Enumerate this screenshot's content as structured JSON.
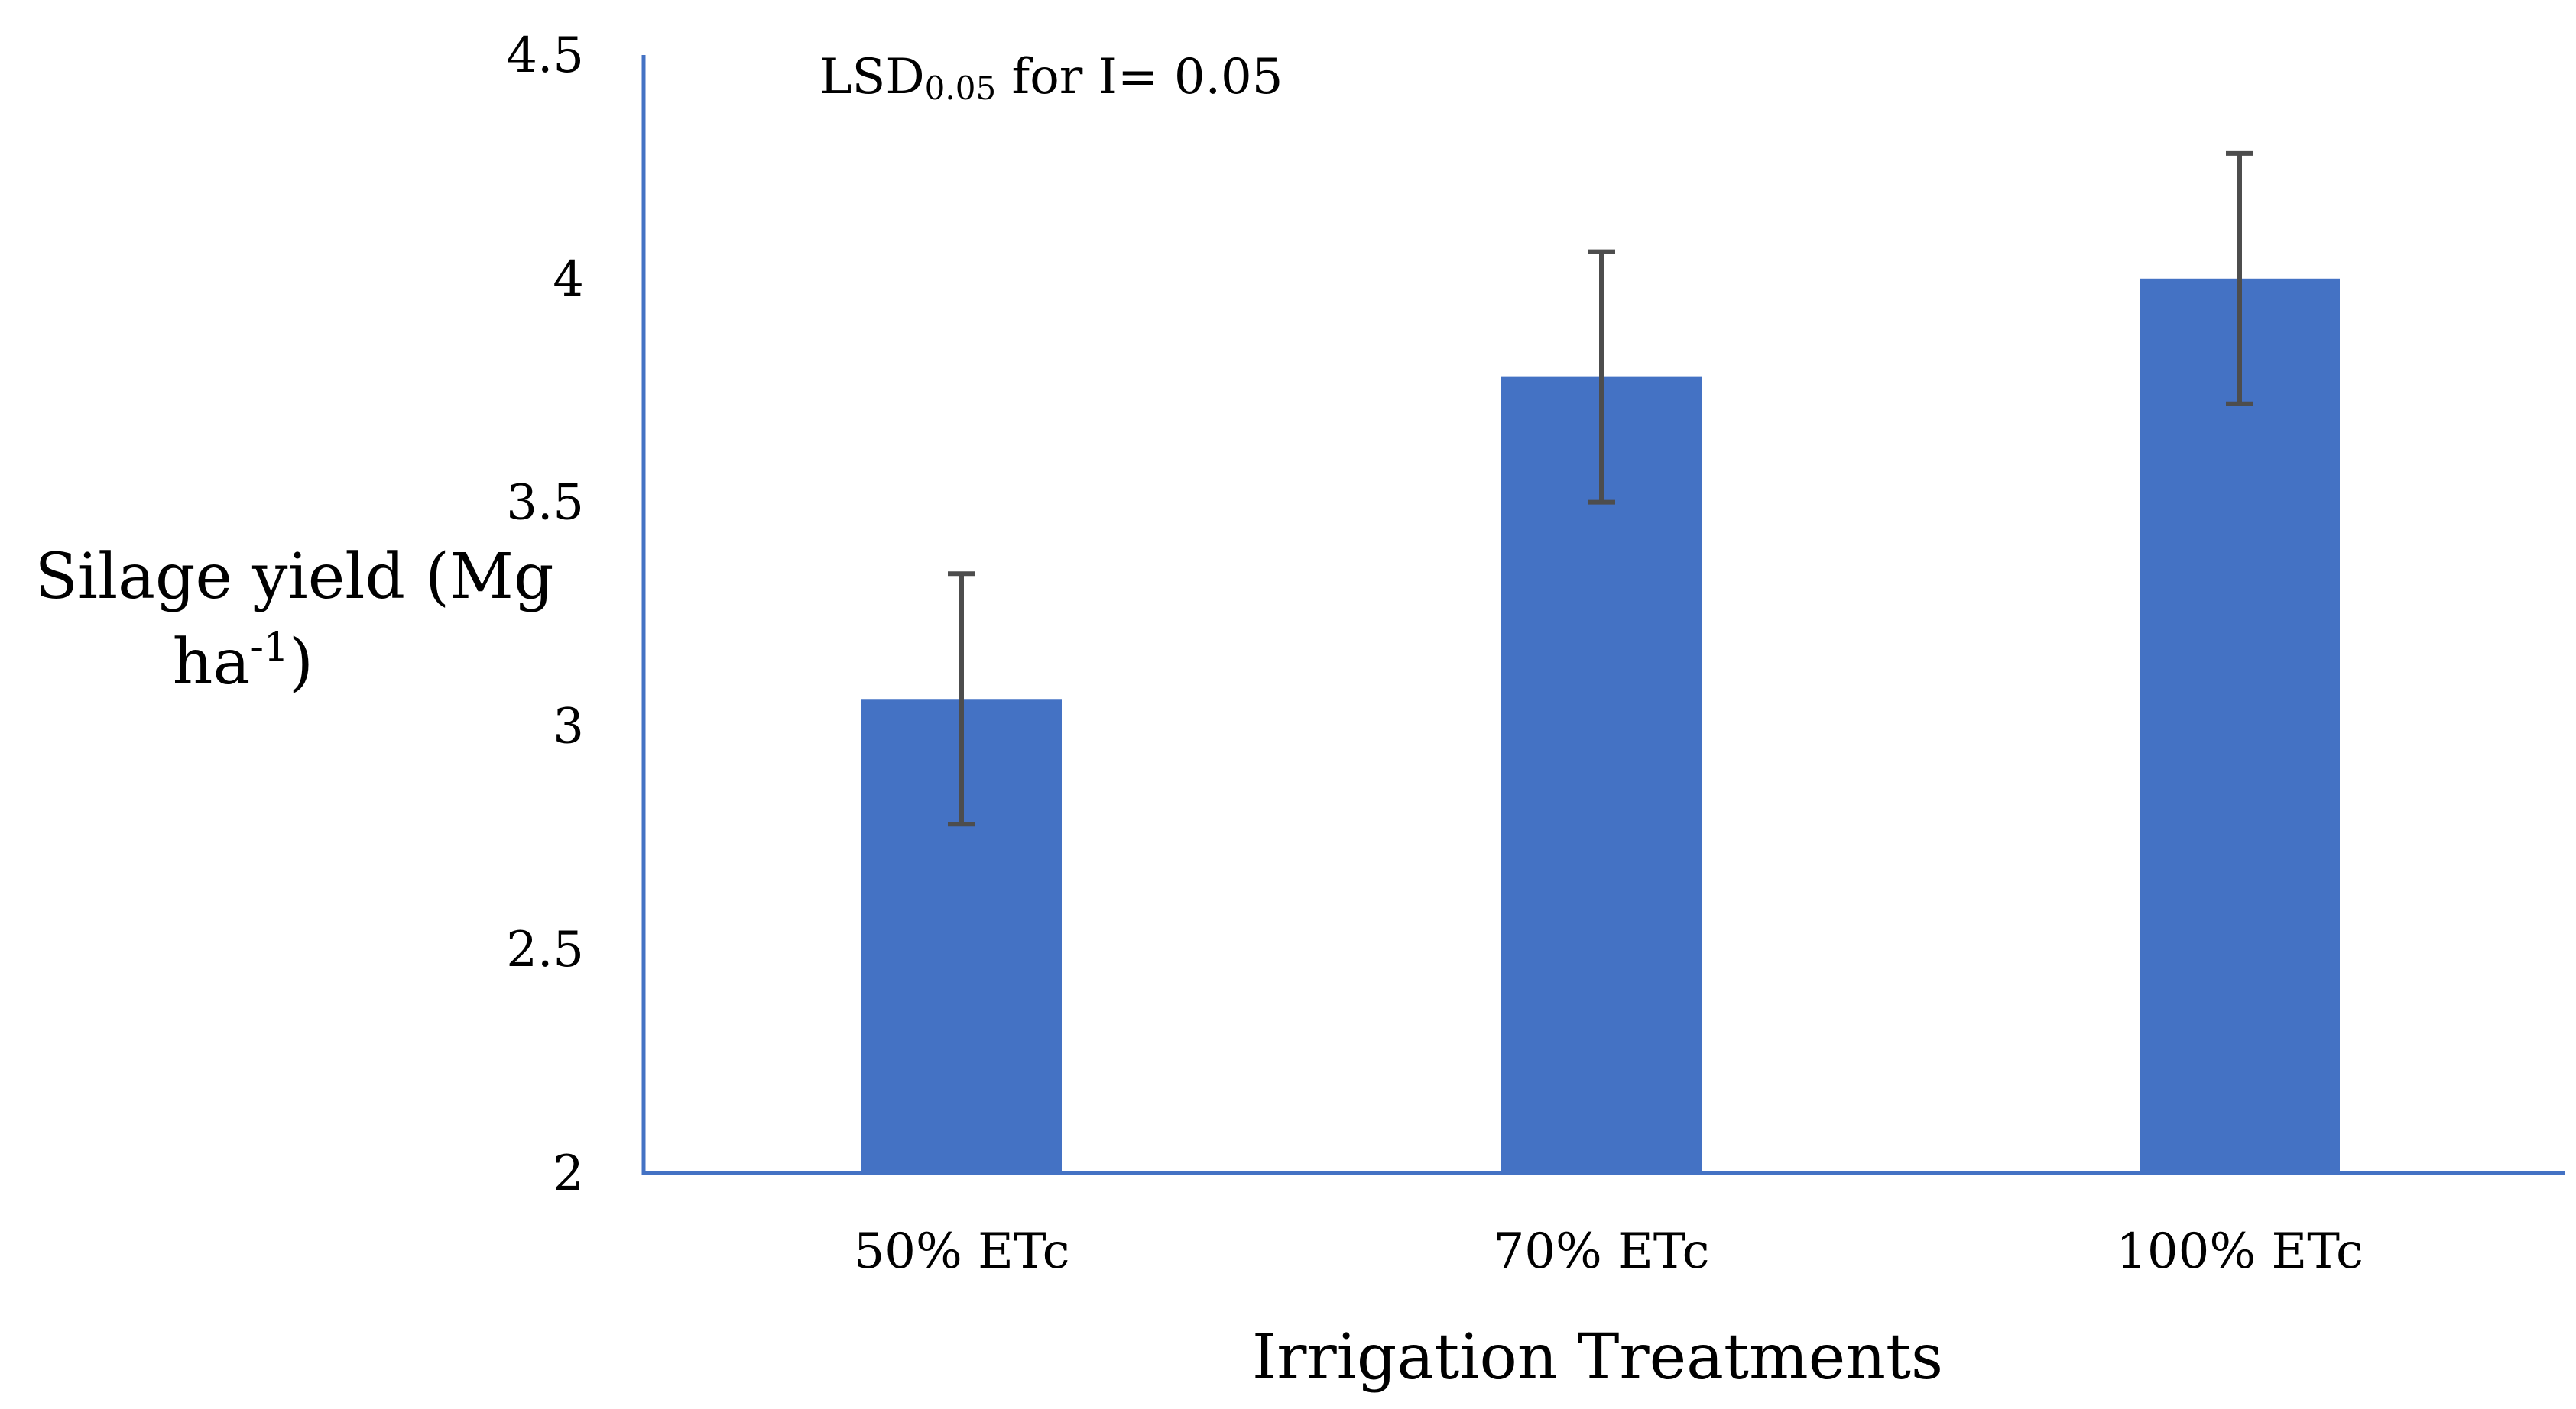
{
  "chart_data": {
    "type": "bar",
    "title": "",
    "categories": [
      "50% ETc",
      "70% ETc",
      "100% ETc"
    ],
    "values": [
      3.06,
      3.78,
      4.0
    ],
    "error": [
      0.28,
      0.28,
      0.28
    ],
    "xlabel": "Irrigation Treatments",
    "ylabel": {
      "line1": "Silage yield (Mg",
      "line2_base": "ha",
      "line2_sup": "-1",
      "line2_end": ")"
    },
    "ylim": [
      2,
      4.5
    ],
    "yticks": [
      "2",
      "2.5",
      "3",
      "3.5",
      "4",
      "4.5"
    ],
    "grid": false,
    "legend": "none",
    "annotation": {
      "prefix": "LSD",
      "subscript": "0.05",
      "suffix": " for I= 0.05"
    },
    "colors": {
      "bar": "#4472C4",
      "axis": "#4472C4",
      "error_bar": "#4D4D4D"
    }
  }
}
